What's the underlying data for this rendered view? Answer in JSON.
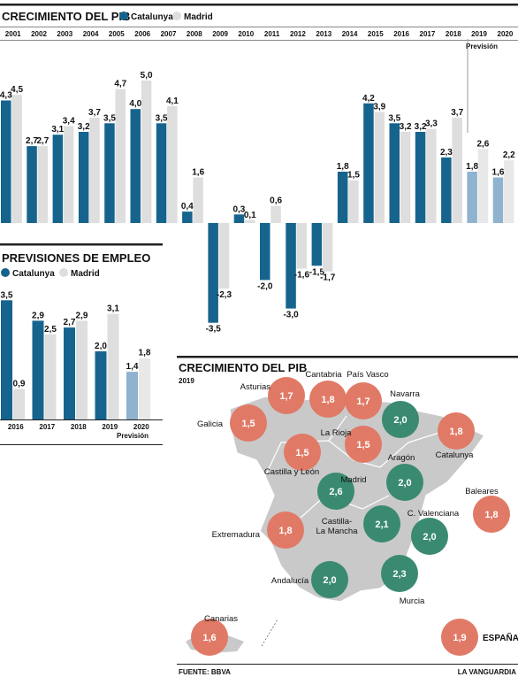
{
  "colors": {
    "catalunya": "#16648d",
    "madrid": "#dedede",
    "forecast_catalunya": "#8fb2cf",
    "forecast_madrid": "#e8e8e8",
    "accent_orange": "#e07a66",
    "accent_green": "#3a8a72",
    "map_land": "#c9c9c9",
    "rule": "#222222"
  },
  "gdp_chart": {
    "title": "CRECIMIENTO DEL PIB",
    "legend": [
      "Catalunya",
      "Madrid"
    ],
    "forecast_label": "Previsión",
    "chart_data": {
      "type": "bar",
      "categories": [
        "2001",
        "2002",
        "2003",
        "2004",
        "2005",
        "2006",
        "2007",
        "2008",
        "2009",
        "2010",
        "2011",
        "2012",
        "2013",
        "2014",
        "2015",
        "2016",
        "2017",
        "2018",
        "2019",
        "2020"
      ],
      "series": [
        {
          "name": "Catalunya",
          "values": [
            4.3,
            2.7,
            3.1,
            3.2,
            3.5,
            4.0,
            3.5,
            0.4,
            -3.5,
            0.3,
            -2.0,
            -3.0,
            -1.5,
            1.8,
            4.2,
            3.5,
            3.2,
            2.3,
            1.8,
            1.6
          ]
        },
        {
          "name": "Madrid",
          "values": [
            4.5,
            2.7,
            3.4,
            3.7,
            4.7,
            5.0,
            4.1,
            1.6,
            -2.3,
            0.1,
            0.6,
            -1.6,
            -1.7,
            1.5,
            3.9,
            3.2,
            3.3,
            3.7,
            2.6,
            2.2
          ]
        }
      ],
      "forecast_from": "2019",
      "value_labels": {
        "Catalunya": [
          "4,3",
          "2,7",
          "3,1",
          "3,2",
          "3,5",
          "4,0",
          "3,5",
          "0,4",
          "-3,5",
          "0,3",
          "-2,0",
          "-3,0",
          "-1,5",
          "1,8",
          "4,2",
          "3,5",
          "3,2",
          "2,3",
          "1,8",
          "1,6"
        ],
        "Madrid": [
          "4,5",
          "2,7",
          "3,4",
          "3,7",
          "4,7",
          "5,0",
          "4,1",
          "1,6",
          "-2,3",
          "0,1",
          "0,6",
          "-1,6",
          "-1,7",
          "1,5",
          "3,9",
          "3,2",
          "3,3",
          "3,7",
          "2,6",
          "2,2"
        ]
      }
    }
  },
  "employment_chart": {
    "title": "PREVISIONES DE EMPLEO",
    "legend": [
      "Catalunya",
      "Madrid"
    ],
    "forecast_label": "Previsión",
    "chart_data": {
      "type": "bar",
      "categories": [
        "2016",
        "2017",
        "2018",
        "2019",
        "2020"
      ],
      "series": [
        {
          "name": "Catalunya",
          "values": [
            3.5,
            2.9,
            2.7,
            2.0,
            1.4
          ]
        },
        {
          "name": "Madrid",
          "values": [
            0.9,
            2.5,
            2.9,
            3.1,
            1.8
          ]
        }
      ],
      "forecast_from": "2020",
      "value_labels": {
        "Catalunya": [
          "3,5",
          "2,9",
          "2,7",
          "2,0",
          "1,4"
        ],
        "Madrid": [
          "0,9",
          "2,5",
          "2,9",
          "3,1",
          "1,8"
        ]
      }
    }
  },
  "map": {
    "title": "CRECIMIENTO DEL PIB",
    "year": "2019",
    "regions": [
      {
        "name": "Asturias",
        "value": "1,7",
        "color": "orange"
      },
      {
        "name": "Cantabria",
        "value": "1,8",
        "color": "orange"
      },
      {
        "name": "País Vasco",
        "value": "1,7",
        "color": "orange"
      },
      {
        "name": "Navarra",
        "value": "2,0",
        "color": "green"
      },
      {
        "name": "Galicia",
        "value": "1,5",
        "color": "orange"
      },
      {
        "name": "Catalunya",
        "value": "1,8",
        "color": "orange"
      },
      {
        "name": "La Rioja",
        "value": "1,5",
        "color": "orange"
      },
      {
        "name": "Castilla y León",
        "value": "1,5",
        "color": "orange"
      },
      {
        "name": "Aragón",
        "value": "2,0",
        "color": "green"
      },
      {
        "name": "Madrid",
        "value": "2,6",
        "color": "green"
      },
      {
        "name": "Baleares",
        "value": "1,8",
        "color": "orange"
      },
      {
        "name": "Castilla-\nLa Mancha",
        "value": "2,1",
        "color": "green"
      },
      {
        "name": "C. Valenciana",
        "value": "2,0",
        "color": "green"
      },
      {
        "name": "Extremadura",
        "value": "1,8",
        "color": "orange"
      },
      {
        "name": "Andalucía",
        "value": "2,0",
        "color": "green"
      },
      {
        "name": "Murcia",
        "value": "2,3",
        "color": "green"
      },
      {
        "name": "Canarias",
        "value": "1,6",
        "color": "orange"
      },
      {
        "name": "ESPAÑA",
        "value": "1,9",
        "color": "orange"
      }
    ]
  },
  "footer": {
    "source": "FUENTE: BBVA",
    "brand": "LA VANGUARDIA"
  }
}
